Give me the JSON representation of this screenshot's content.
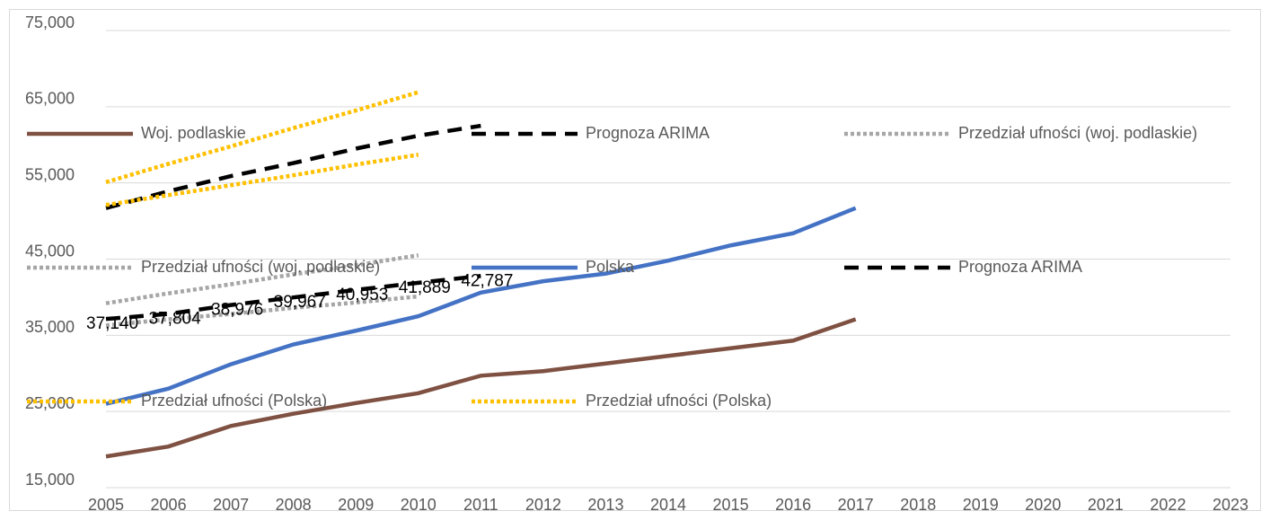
{
  "chart_data": {
    "type": "line",
    "x": [
      2005,
      2006,
      2007,
      2008,
      2009,
      2010,
      2011,
      2012,
      2013,
      2014,
      2015,
      2016,
      2017
    ],
    "xlim": [
      2005,
      2023
    ],
    "xticks": [
      2005,
      2006,
      2007,
      2008,
      2009,
      2010,
      2011,
      2012,
      2013,
      2014,
      2015,
      2016,
      2017,
      2018,
      2019,
      2020,
      2021,
      2022,
      2023
    ],
    "ylim": [
      15000,
      75000
    ],
    "yticks": [
      {
        "value": 15000,
        "label": "15,000"
      },
      {
        "value": 25000,
        "label": "25,000"
      },
      {
        "value": 35000,
        "label": "35,000"
      },
      {
        "value": 45000,
        "label": "45,000"
      },
      {
        "value": 55000,
        "label": "55,000"
      },
      {
        "value": 65000,
        "label": "65,000"
      },
      {
        "value": 75000,
        "label": "75,000"
      }
    ],
    "grid": true,
    "series": [
      {
        "name": "Woj. podlaskie",
        "color": "#7f5142",
        "line_style": "solid",
        "values": [
          19100,
          20400,
          23100,
          24700,
          26100,
          27400,
          29700,
          30300,
          31300,
          32300,
          33300,
          34300,
          37100
        ]
      },
      {
        "name": "Prognoza ARIMA",
        "color": "#000000",
        "line_style": "dashed",
        "values": [
          51700,
          53900,
          55900,
          57600,
          59500,
          61200,
          62500,
          null,
          null,
          null,
          null,
          null,
          null
        ]
      },
      {
        "name": "Przedział ufności (woj. podlaskie)",
        "color": "#a6a6a6",
        "line_style": "dotted",
        "values": [
          39200,
          40500,
          41700,
          43000,
          44200,
          45500,
          null,
          null,
          null,
          null,
          null,
          null,
          null
        ]
      },
      {
        "name": "Przedział ufności (woj. podlaskie)",
        "color": "#a6a6a6",
        "line_style": "dotted",
        "values": [
          36300,
          37100,
          37800,
          38600,
          39300,
          40100,
          null,
          null,
          null,
          null,
          null,
          null,
          null
        ]
      },
      {
        "name": "Polska",
        "color": "#4472c4",
        "line_style": "solid",
        "values": [
          26000,
          28000,
          31200,
          33800,
          35600,
          37500,
          40600,
          42100,
          43100,
          44800,
          46800,
          48400,
          51700
        ]
      },
      {
        "name": "Prognoza ARIMA",
        "color": "#000000",
        "line_style": "dashed",
        "values": [
          37140,
          37804,
          38976,
          39967,
          40953,
          41889,
          42787,
          null,
          null,
          null,
          null,
          null,
          null
        ],
        "value_labels": [
          "37,140",
          "37,804",
          "38,976",
          "39,967",
          "40,953",
          "41,889",
          "42,787",
          null,
          null,
          null,
          null,
          null,
          null
        ]
      },
      {
        "name": "Przedział ufności (Polska)",
        "color": "#ffc000",
        "line_style": "dotted",
        "values": [
          55100,
          57500,
          59800,
          62200,
          64500,
          66900,
          null,
          null,
          null,
          null,
          null,
          null,
          null
        ]
      },
      {
        "name": "Przedział ufności (Polska)",
        "color": "#ffc000",
        "line_style": "dotted",
        "values": [
          52100,
          53400,
          54700,
          56000,
          57400,
          58700,
          null,
          null,
          null,
          null,
          null,
          null,
          null
        ]
      }
    ]
  }
}
